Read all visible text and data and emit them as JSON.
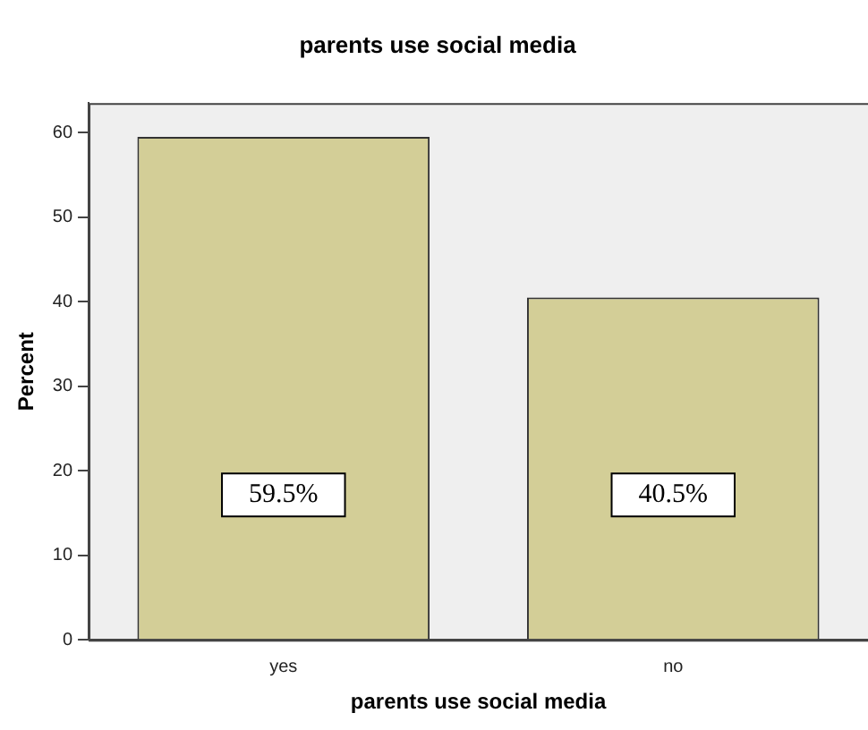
{
  "chart_data": {
    "type": "bar",
    "title": "parents use social media",
    "xlabel": "parents use social media",
    "ylabel": "Percent",
    "categories": [
      "yes",
      "no"
    ],
    "values": [
      59.5,
      40.5
    ],
    "color": "#d3ce97",
    "value_labels": [
      "59.5%",
      "40.5%"
    ],
    "ylim": [
      0,
      63.5
    ],
    "yticks": [
      0,
      10,
      20,
      30,
      40,
      50,
      60
    ],
    "grid": false,
    "legend": false
  }
}
